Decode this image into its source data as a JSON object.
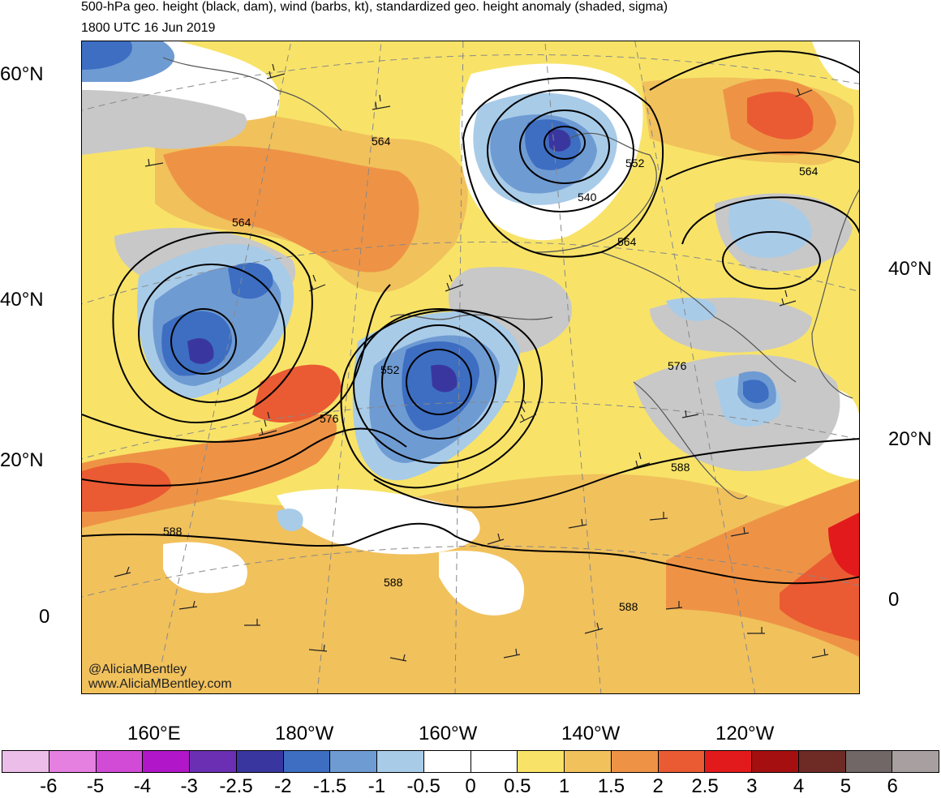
{
  "title": {
    "line1": "500-hPa geo. height (black, dam), wind (barbs, kt), standardized geo. height anomaly (shaded, sigma)",
    "line2": "1800 UTC 16 Jun 2019"
  },
  "credits": {
    "handle": "@AliciaMBentley",
    "website": "www.AliciaMBentley.com"
  },
  "lat_labels_left": [
    "60°N",
    "40°N",
    "20°N",
    "0"
  ],
  "lat_labels_right": [
    "40°N",
    "20°N",
    "0"
  ],
  "lon_labels": [
    "160°E",
    "180°W",
    "160°W",
    "140°W",
    "120°W"
  ],
  "contour_labels": [
    "564",
    "564",
    "552",
    "540",
    "564",
    "564",
    "552",
    "576",
    "576",
    "588",
    "588",
    "588",
    "588"
  ],
  "colorbar": {
    "labels": [
      "-6",
      "-5",
      "-4",
      "-3",
      "-2.5",
      "-2",
      "-1.5",
      "-1",
      "-0.5",
      "0",
      "0.5",
      "1",
      "1.5",
      "2",
      "2.5",
      "3",
      "4",
      "5",
      "6"
    ],
    "colors": [
      "#ecbde8",
      "#e57fe0",
      "#d24bd6",
      "#b116c8",
      "#6a2fb3",
      "#3a36a0",
      "#3d6ec2",
      "#6f9bd3",
      "#a8cbe8",
      "#ffffff",
      "#ffffff",
      "#f8e368",
      "#f1c15c",
      "#ee9345",
      "#ea5b33",
      "#e31a1c",
      "#a50f0f",
      "#6e2a25",
      "#716766",
      "#a8a0a0"
    ]
  }
}
